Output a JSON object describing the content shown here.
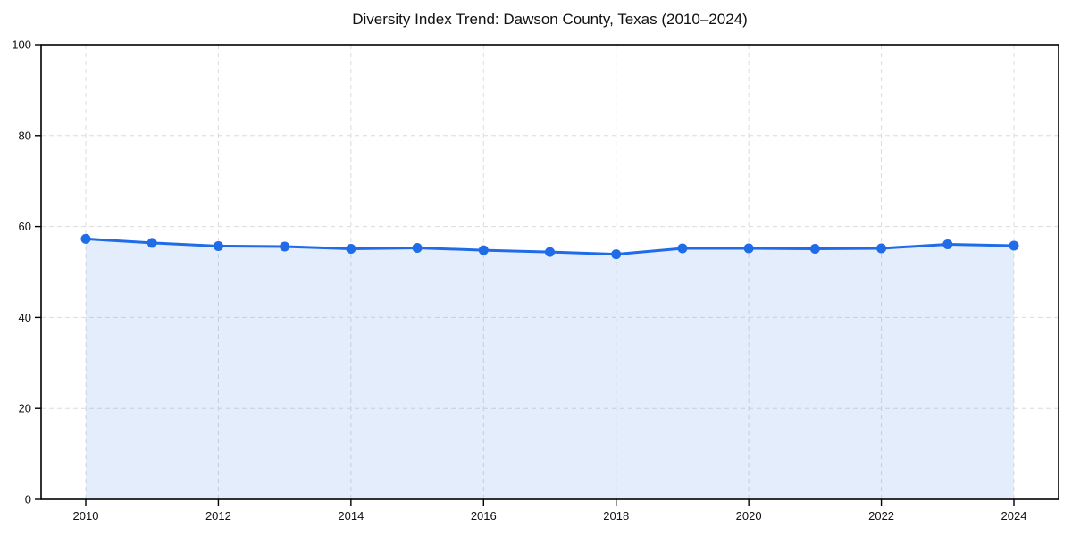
{
  "chart_data": {
    "type": "area",
    "title": "Diversity Index Trend: Dawson County, Texas (2010–2024)",
    "x": [
      2010,
      2011,
      2012,
      2013,
      2014,
      2015,
      2016,
      2017,
      2018,
      2019,
      2020,
      2021,
      2022,
      2023,
      2024
    ],
    "values": [
      57.3,
      56.4,
      55.7,
      55.6,
      55.1,
      55.3,
      54.8,
      54.4,
      53.9,
      55.2,
      55.2,
      55.1,
      55.2,
      56.1,
      55.8
    ],
    "xlabel": "",
    "ylabel": "",
    "ylim": [
      0,
      100
    ],
    "yticks": [
      0,
      20,
      40,
      60,
      80,
      100
    ],
    "xticks": [
      2010,
      2012,
      2014,
      2016,
      2018,
      2020,
      2022,
      2024
    ],
    "grid": "dashed",
    "legend": "none",
    "colors": {
      "line": "#1f6be8",
      "marker": "#1f6be8",
      "fill": "rgba(31,107,232,0.12)",
      "gridline": "#dcdcdc",
      "spine": "#000000",
      "text": "#111111",
      "background": "#ffffff"
    }
  }
}
